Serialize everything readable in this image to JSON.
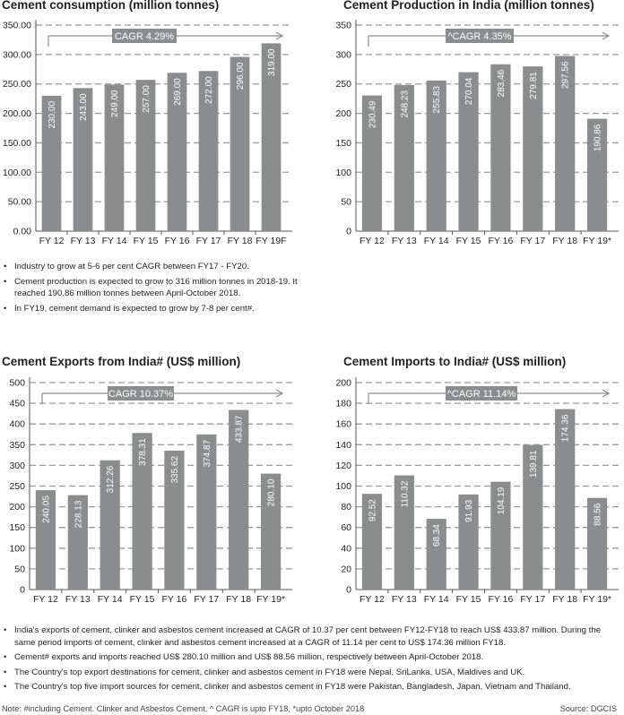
{
  "colors": {
    "bar": "#8a8c8e",
    "grid": "#9a9a9a",
    "cagr_box": "#8a8c8e",
    "text": "#231f20"
  },
  "chart_data": [
    {
      "type": "bar",
      "title": "Cement consumption (million tonnes)",
      "categories": [
        "FY 12",
        "FY 13",
        "FY 14",
        "FY 15",
        "FY 16",
        "FY 17",
        "FY 18",
        "FY 19F"
      ],
      "values": [
        230.0,
        243.0,
        249.0,
        257.0,
        269.0,
        272.0,
        296.0,
        319.0
      ],
      "value_labels": [
        "230.00",
        "243.00",
        "249.00",
        "257.00",
        "269.00",
        "272.00",
        "296.00",
        "319.00"
      ],
      "yticks": [
        "0.00",
        "50.00",
        "100.00",
        "150.00",
        "200.00",
        "250.00",
        "300.00",
        "350.00"
      ],
      "ylim": [
        0,
        350
      ],
      "ystep": 50,
      "cagr_label": "CAGR 4.29%",
      "xlabel": "",
      "ylabel": ""
    },
    {
      "type": "bar",
      "title": "Cement Production in India (million tonnes)",
      "categories": [
        "FY 12",
        "FY 13",
        "FY 14",
        "FY 15",
        "FY 16",
        "FY 17",
        "FY 18",
        "FY 19*"
      ],
      "values": [
        230.49,
        248.23,
        255.83,
        270.04,
        283.46,
        279.81,
        297.56,
        190.86
      ],
      "value_labels": [
        "230.49",
        "248.23",
        "255.83",
        "270.04",
        "283.46",
        "279.81",
        "297.56",
        "190.86"
      ],
      "yticks": [
        "0",
        "50",
        "100",
        "150",
        "200",
        "250",
        "300",
        "350"
      ],
      "ylim": [
        0,
        350
      ],
      "ystep": 50,
      "cagr_label": "^CAGR 4.35%",
      "xlabel": "",
      "ylabel": ""
    },
    {
      "type": "bar",
      "title": "Cement Exports from India# (US$ million)",
      "categories": [
        "FY 12",
        "FY 13",
        "FY 14",
        "FY 15",
        "FY 16",
        "FY 17",
        "FY 18",
        "FY 19*"
      ],
      "values": [
        240.05,
        228.13,
        312.26,
        378.31,
        335.62,
        374.87,
        433.87,
        280.1
      ],
      "value_labels": [
        "240.05",
        "228.13",
        "312.26",
        "378.31",
        "335.62",
        "374.87",
        "433.87",
        "280.10"
      ],
      "yticks": [
        "0",
        "50",
        "100",
        "150",
        "200",
        "250",
        "300",
        "350",
        "400",
        "450",
        "500"
      ],
      "ylim": [
        0,
        500
      ],
      "ystep": 50,
      "cagr_label": "CAGR 10.37%",
      "xlabel": "",
      "ylabel": ""
    },
    {
      "type": "bar",
      "title": "Cement Imports to India# (US$ million)",
      "categories": [
        "FY 12",
        "FY 13",
        "FY 14",
        "FY 15",
        "FY 16",
        "FY 17",
        "FY 18",
        "FY 19*"
      ],
      "values": [
        92.52,
        110.32,
        68.34,
        91.93,
        104.19,
        139.81,
        174.36,
        88.56
      ],
      "value_labels": [
        "92.52",
        "110.32",
        "68.34",
        "91.93",
        "104.19",
        "139.81",
        "174.36",
        "88.56"
      ],
      "yticks": [
        "0",
        "20",
        "40",
        "60",
        "80",
        "100",
        "120",
        "140",
        "160",
        "180",
        "200"
      ],
      "ylim": [
        0,
        200
      ],
      "ystep": 20,
      "cagr_label": "^CAGR 11.14%",
      "xlabel": "",
      "ylabel": ""
    }
  ],
  "notes_top": [
    "Industry to grow at 5-6 per cent CAGR between FY17 - FY20.",
    "Cement production is expected to grow to 316 million tonnes in 2018-19. It reached 190.86 million tonnes between April-October 2018.",
    "In FY19, cement demand is expected to grow by 7-8 per cent#."
  ],
  "notes_bottom": [
    "India's exports of cement, clinker and asbestos cement increased at CAGR of 10.37 per cent between FY12-FY18 to reach US$ 433.87 million. During the same period imports of cement, clinker and asbestos cement increased at a CAGR of 11.14 per cent to US$ 174.36 million FY18.",
    "Cement# exports and imports reached US$ 280.10 million and US$ 88.56 million, respectively between April-October 2018.",
    "The Country's top export destinations for cement, clinker and asbestos cement in FY18 were Nepal, SriLanka, USA, Maldives and UK.",
    "The Country's top five import sources for cement, clinker and asbestos cement in FY18 were Pakistan, Bangladesh, Japan, Vietnam and Thailand."
  ],
  "footnote_left": "Note: #including Cement. Clinker and Asbestos Cement, ^ CAGR is upto FY18, *upto October 2018",
  "footnote_right": "Source: DGCIS"
}
